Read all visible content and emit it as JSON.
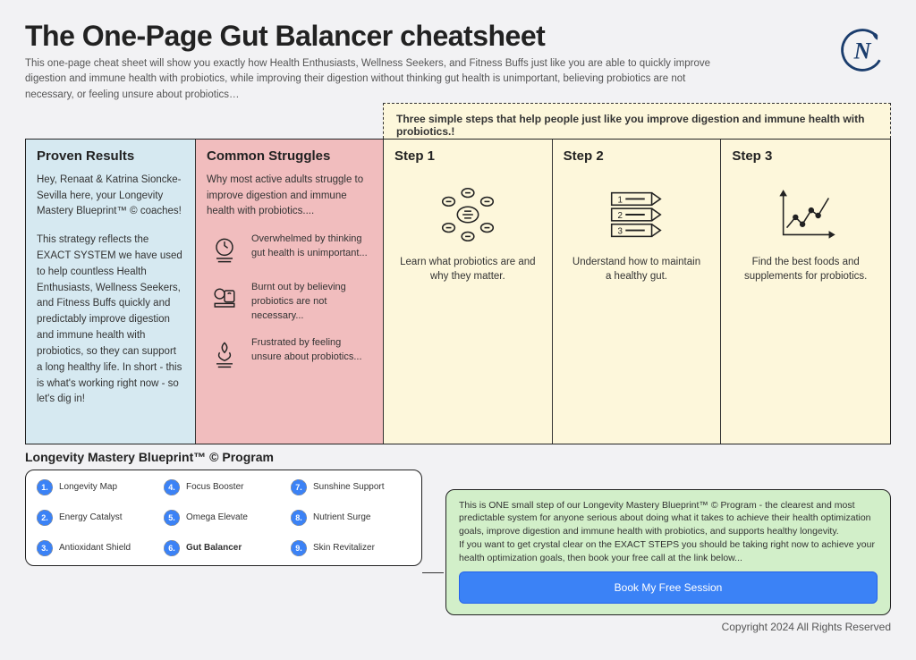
{
  "header": {
    "title": "The One-Page Gut Balancer cheatsheet",
    "subtitle": "This one-page cheat sheet will show you exactly how Health Enthusiasts, Wellness Seekers, and Fitness Buffs just like you are able to quickly improve digestion and immune health with probiotics, while improving their digestion without thinking gut health is unimportant, believing probiotics are not necessary, or feeling unsure about probiotics…"
  },
  "columns": {
    "proven": {
      "heading": "Proven Results",
      "p1": "Hey, Renaat & Katrina Sioncke-Sevilla here, your Longevity Mastery Blueprint™ © coaches!",
      "p2": "This strategy reflects the EXACT SYSTEM we have used to help countless Health Enthusiasts, Wellness Seekers, and Fitness Buffs quickly and predictably improve digestion and immune health with probiotics, so they can support a long healthy life. In short - this is what's working right now - so let's dig in!"
    },
    "struggles": {
      "heading": "Common Struggles",
      "intro": "Why most active adults struggle to improve digestion and immune health with probiotics....",
      "items": [
        "Overwhelmed by thinking gut health is unimportant...",
        "Burnt out by believing probiotics are not necessary...",
        "Frustrated by feeling unsure about probiotics..."
      ]
    },
    "steps_banner": "Three simple steps that help people just like you improve digestion and immune health with probiotics.!",
    "steps": [
      {
        "heading": "Step 1",
        "desc": "Learn what probiotics are and why they matter."
      },
      {
        "heading": "Step 2",
        "desc": "Understand how to maintain a healthy gut."
      },
      {
        "heading": "Step 3",
        "desc": "Find the best foods and supplements for probiotics."
      }
    ]
  },
  "program": {
    "title": "Longevity Mastery Blueprint™ © Program",
    "items": [
      {
        "num": "1.",
        "label": "Longevity Map"
      },
      {
        "num": "2.",
        "label": "Energy Catalyst"
      },
      {
        "num": "3.",
        "label": "Antioxidant Shield"
      },
      {
        "num": "4.",
        "label": "Focus Booster"
      },
      {
        "num": "5.",
        "label": "Omega Elevate"
      },
      {
        "num": "6.",
        "label": "Gut Balancer",
        "active": true
      },
      {
        "num": "7.",
        "label": "Sunshine Support"
      },
      {
        "num": "8.",
        "label": "Nutrient Surge"
      },
      {
        "num": "9.",
        "label": "Skin Revitalizer"
      }
    ]
  },
  "cta": {
    "text": "This is ONE small step of our Longevity Mastery Blueprint™ © Program - the clearest and most predictable system for anyone serious about doing what it takes to achieve their health optimization goals, improve digestion and immune health with probiotics, and supports healthy longevity.\nIf you want to get crystal clear on the EXACT STEPS you should be taking right now to achieve your health optimization goals, then book your free call at the link below...",
    "button": "Book My Free Session"
  },
  "footer": {
    "copyright": "Copyright 2024 All Rights Reserved"
  },
  "colors": {
    "page_bg": "#f2f2f4",
    "proven_bg": "#d6e9f1",
    "struggles_bg": "#f1bdbe",
    "steps_bg": "#fdf7db",
    "cta_bg": "#d2efc9",
    "button_bg": "#3b82f6",
    "border": "#222222"
  }
}
